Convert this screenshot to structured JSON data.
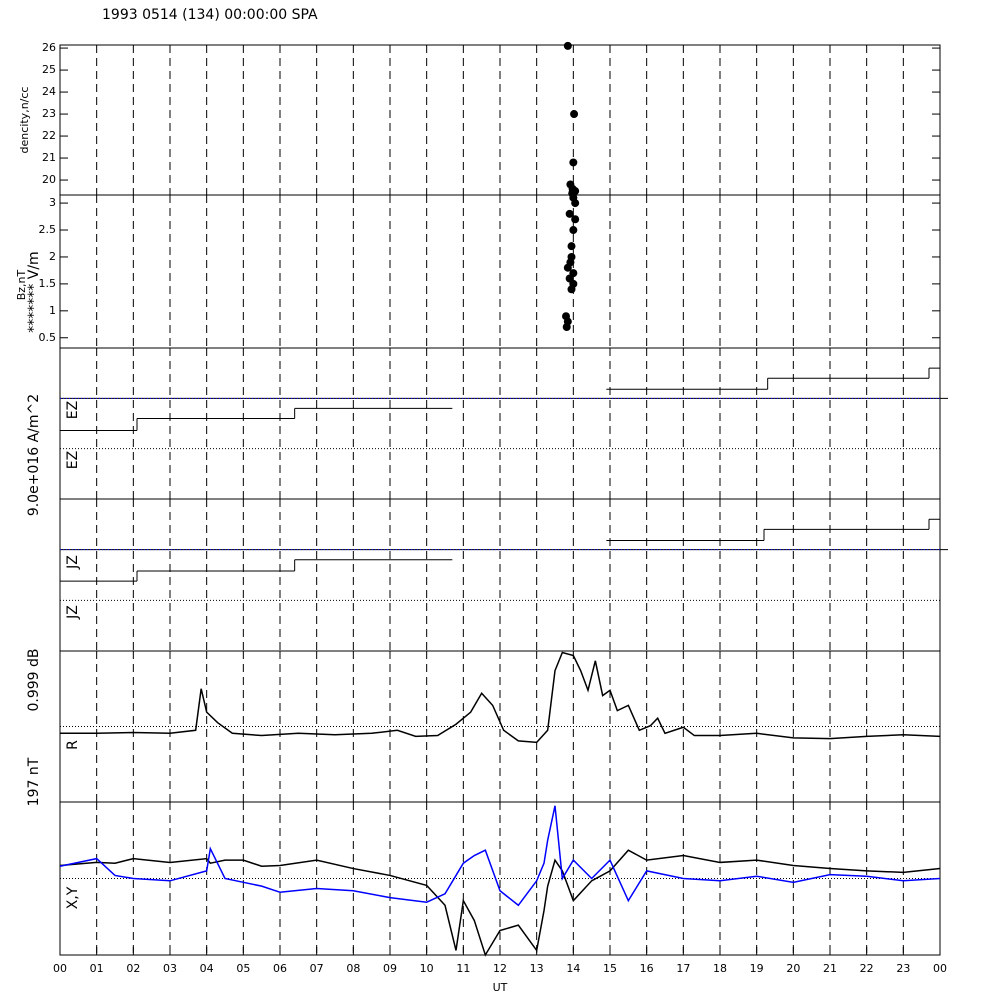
{
  "chart_data": [
    {
      "type": "scatter",
      "title": "1993 0514 (134) 00:00:00 SPA",
      "ylabels": [
        "dencity,n/cc"
      ],
      "xlim": [
        0,
        24
      ],
      "ylim": [
        19.32,
        26.14
      ],
      "yticks": [
        20,
        21,
        22,
        23,
        24,
        25,
        26
      ],
      "x": [
        13.85,
        14.02,
        14.0,
        13.92,
        13.98,
        14.05,
        13.97
      ],
      "values": [
        26.1,
        23.0,
        20.8,
        19.8,
        19.6,
        19.5,
        19.4
      ],
      "color": "#000000"
    },
    {
      "type": "scatter",
      "ylabels": [
        "Bz,nT",
        "******* V/m"
      ],
      "xlim": [
        0,
        24
      ],
      "ylim": [
        0.31,
        3.15
      ],
      "yticks": [
        0.5,
        1.0,
        1.5,
        2.0,
        2.5,
        3.0
      ],
      "x": [
        13.9,
        14.05,
        14.0,
        13.95,
        14.05,
        14.0,
        13.95,
        13.85,
        13.9,
        14.0,
        13.95,
        13.8,
        13.82,
        13.85,
        13.92,
        14.0
      ],
      "values": [
        2.8,
        2.7,
        2.5,
        2.2,
        3.0,
        3.1,
        2.0,
        1.8,
        1.6,
        1.5,
        1.4,
        0.9,
        0.7,
        0.8,
        1.9,
        1.7
      ],
      "color": "#000000"
    },
    {
      "type": "step",
      "ylabels": [
        "9.0e+016 A/m^2",
        "EZ",
        "EZ"
      ],
      "xlim": [
        0,
        24
      ],
      "ylim": [
        -2,
        1
      ],
      "hlines": [
        0,
        -1
      ],
      "hline_colors": [
        "#0000ff",
        "#000000"
      ],
      "x": [
        0,
        2.1,
        6.4,
        10.7,
        14.9,
        19.3,
        23.7
      ],
      "values": [
        -0.64,
        -0.4,
        -0.2,
        null,
        0.18,
        0.4,
        0.6
      ],
      "color": "#000000"
    },
    {
      "type": "step",
      "ylabels": [
        "JZ",
        "JZ"
      ],
      "xlim": [
        0,
        24
      ],
      "ylim": [
        -2,
        1
      ],
      "hlines": [
        0,
        -1
      ],
      "hline_colors": [
        "#0000ff",
        "#000000"
      ],
      "x": [
        0,
        2.1,
        6.4,
        10.7,
        14.9,
        19.2,
        23.7
      ],
      "values": [
        -0.62,
        -0.42,
        -0.2,
        null,
        0.18,
        0.4,
        0.6
      ],
      "color": "#000000"
    },
    {
      "type": "line",
      "ylabels": [
        "0.999 dB",
        "R"
      ],
      "xlim": [
        0,
        24
      ],
      "ylim": [
        -1,
        1
      ],
      "hlines": [
        0
      ],
      "hline_colors": [
        "#000000"
      ],
      "x": [
        0,
        1,
        2,
        3,
        3.7,
        3.85,
        4.0,
        4.3,
        4.7,
        5.5,
        6.5,
        7.5,
        8.5,
        9.2,
        9.7,
        10.3,
        10.8,
        11.2,
        11.5,
        11.8,
        12.1,
        12.5,
        13.0,
        13.3,
        13.5,
        13.7,
        14.0,
        14.2,
        14.4,
        14.6,
        14.8,
        15.0,
        15.2,
        15.5,
        15.8,
        16.1,
        16.3,
        16.5,
        17.0,
        17.3,
        18,
        19,
        20,
        21,
        22,
        23,
        24
      ],
      "series": [
        {
          "color": "#000000",
          "values": [
            -0.09,
            -0.09,
            -0.08,
            -0.09,
            -0.05,
            0.5,
            0.19,
            0.05,
            -0.09,
            -0.12,
            -0.09,
            -0.11,
            -0.09,
            -0.05,
            -0.13,
            -0.12,
            0.03,
            0.19,
            0.44,
            0.28,
            -0.05,
            -0.19,
            -0.21,
            -0.05,
            0.74,
            0.98,
            0.94,
            0.74,
            0.48,
            0.87,
            0.41,
            0.48,
            0.21,
            0.28,
            -0.05,
            0.01,
            0.11,
            -0.09,
            -0.01,
            -0.12,
            -0.12,
            -0.09,
            -0.15,
            -0.16,
            -0.13,
            -0.11,
            -0.13
          ]
        }
      ]
    },
    {
      "type": "line",
      "ylabels": [
        "197 nT",
        "X,Y"
      ],
      "xlabel": "UT",
      "xlim": [
        0,
        24
      ],
      "ylim": [
        -1,
        1
      ],
      "hlines": [
        0
      ],
      "hline_colors": [
        "#000000"
      ],
      "xticks": [
        {
          "value": 0,
          "label": "00"
        },
        {
          "value": 1,
          "label": "01"
        },
        {
          "value": 2,
          "label": "02"
        },
        {
          "value": 3,
          "label": "03"
        },
        {
          "value": 4,
          "label": "04"
        },
        {
          "value": 5,
          "label": "05"
        },
        {
          "value": 6,
          "label": "06"
        },
        {
          "value": 7,
          "label": "07"
        },
        {
          "value": 8,
          "label": "08"
        },
        {
          "value": 9,
          "label": "09"
        },
        {
          "value": 10,
          "label": "10"
        },
        {
          "value": 11,
          "label": "11"
        },
        {
          "value": 12,
          "label": "12"
        },
        {
          "value": 13,
          "label": "13"
        },
        {
          "value": 14,
          "label": "14"
        },
        {
          "value": 15,
          "label": "15"
        },
        {
          "value": 16,
          "label": "16"
        },
        {
          "value": 17,
          "label": "17"
        },
        {
          "value": 18,
          "label": "18"
        },
        {
          "value": 19,
          "label": "19"
        },
        {
          "value": 20,
          "label": "20"
        },
        {
          "value": 21,
          "label": "21"
        },
        {
          "value": 22,
          "label": "22"
        },
        {
          "value": 23,
          "label": "23"
        },
        {
          "value": 24,
          "label": "00"
        }
      ],
      "x": [
        0,
        1,
        1.5,
        2,
        3,
        4,
        4.1,
        4.5,
        5,
        5.5,
        6,
        7,
        8,
        9,
        10,
        10.5,
        10.8,
        11.0,
        11.3,
        11.6,
        12.0,
        12.5,
        13,
        13.2,
        13.3,
        13.5,
        13.7,
        14.0,
        14.5,
        15,
        15.5,
        16,
        17,
        18,
        19,
        20,
        21,
        22,
        23,
        24
      ],
      "series": [
        {
          "color": "#000000",
          "values": [
            0.17,
            0.21,
            0.2,
            0.26,
            0.21,
            0.26,
            0.2,
            0.24,
            0.24,
            0.16,
            0.17,
            0.24,
            0.13,
            0.04,
            -0.09,
            -0.35,
            -0.94,
            -0.29,
            -0.55,
            -1.0,
            -0.68,
            -0.61,
            -0.94,
            -0.42,
            -0.1,
            0.24,
            0.1,
            -0.29,
            -0.03,
            0.1,
            0.37,
            0.24,
            0.3,
            0.21,
            0.24,
            0.17,
            0.13,
            0.1,
            0.08,
            0.13
          ]
        },
        {
          "color": "#0000ff",
          "values": [
            0.16,
            0.26,
            0.04,
            0.0,
            -0.03,
            0.1,
            0.39,
            0.0,
            -0.05,
            -0.1,
            -0.18,
            -0.13,
            -0.16,
            -0.25,
            -0.31,
            -0.2,
            0.04,
            0.2,
            0.3,
            0.37,
            -0.16,
            -0.35,
            -0.03,
            0.2,
            0.5,
            0.95,
            0.0,
            0.24,
            0.0,
            0.24,
            -0.29,
            0.1,
            0.0,
            -0.03,
            0.03,
            -0.05,
            0.05,
            0.03,
            -0.03,
            0.0
          ]
        }
      ]
    }
  ]
}
